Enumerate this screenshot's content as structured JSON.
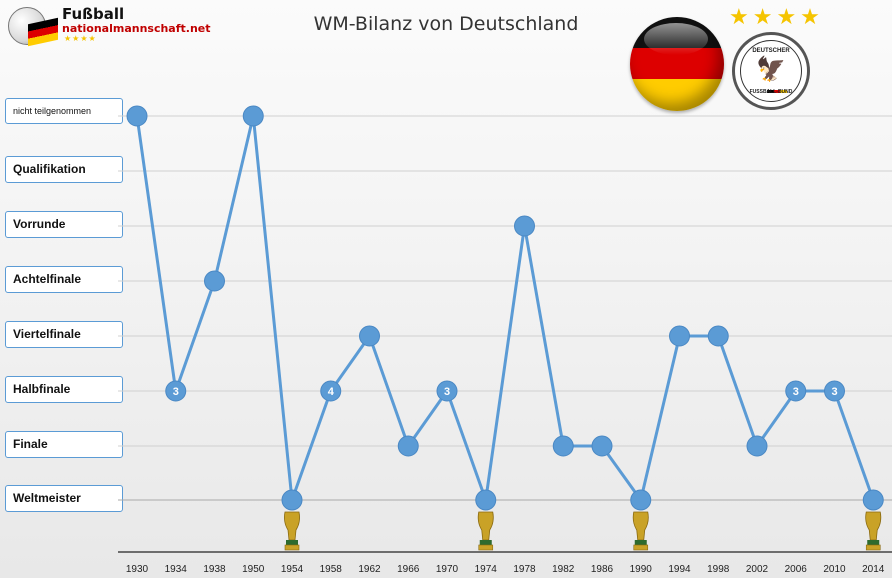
{
  "logo": {
    "line1": "Fußball",
    "line2": "nationalmannschaft.net",
    "stars": "★★★★"
  },
  "dfb_badge": {
    "top_text": "DEUTSCHER",
    "bottom_text": "FUSSBALL-BUND"
  },
  "stars": "★★★★",
  "colors": {
    "line": "#5b9bd5",
    "marker": "#5b9bd5",
    "trophy": "#c9a227",
    "grid": "#d0d0d0"
  },
  "chart_data": {
    "type": "line",
    "title": "WM-Bilanz von Deutschland",
    "levels": [
      "nicht teilgenommen",
      "Qualifikation",
      "Vorrunde",
      "Achtelfinale",
      "Viertelfinale",
      "Halbfinale",
      "Finale",
      "Weltmeister"
    ],
    "x": [
      "1930",
      "1934",
      "1938",
      "1950",
      "1954",
      "1958",
      "1962",
      "1966",
      "1970",
      "1974",
      "1978",
      "1982",
      "1986",
      "1990",
      "1994",
      "1998",
      "2002",
      "2006",
      "2010",
      "2014"
    ],
    "values": [
      "nicht teilgenommen",
      "Halbfinale",
      "Achtelfinale",
      "nicht teilgenommen",
      "Weltmeister",
      "Halbfinale",
      "Viertelfinale",
      "Finale",
      "Halbfinale",
      "Weltmeister",
      "Vorrunde",
      "Finale",
      "Finale",
      "Weltmeister",
      "Viertelfinale",
      "Viertelfinale",
      "Finale",
      "Halbfinale",
      "Halbfinale",
      "Weltmeister"
    ],
    "point_labels": [
      "",
      "3",
      "",
      "",
      "",
      "4",
      "",
      "",
      "3",
      "",
      "",
      "",
      "",
      "",
      "",
      "",
      "",
      "3",
      "3",
      ""
    ],
    "trophy_years": [
      "1954",
      "1974",
      "1990",
      "2014"
    ],
    "grid": true,
    "legend": "none"
  }
}
